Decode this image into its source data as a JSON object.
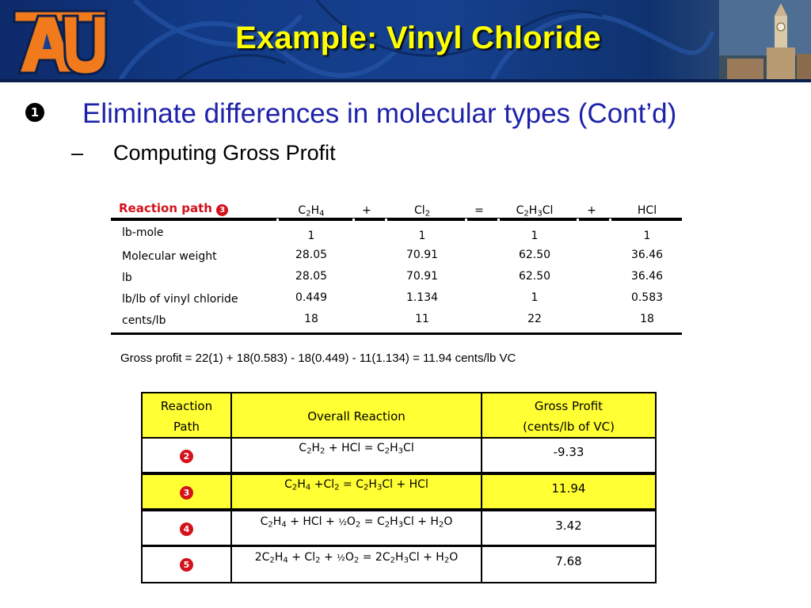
{
  "header": {
    "title": "Example: Vinyl Chloride"
  },
  "bullets": {
    "level1_marker": "1",
    "level1_text": "Eliminate differences in molecular types (Cont’d)",
    "level2_dash": "–",
    "level2_text": "Computing Gross Profit"
  },
  "reaction_table": {
    "title": "Reaction path",
    "path_marker": "3",
    "header": [
      {
        "main": "C",
        "sub": "2",
        "main2": "H",
        "sub2": "4",
        "tail": ""
      },
      {
        "main": "+"
      },
      {
        "main": "Cl",
        "sub": "2"
      },
      {
        "main": "="
      },
      {
        "main": "C",
        "sub": "2",
        "main2": "H",
        "sub2": "3",
        "tail": "Cl"
      },
      {
        "main": "+"
      },
      {
        "main": "HCl"
      }
    ],
    "rows": [
      {
        "label": "lb-mole",
        "values": [
          "1",
          "1",
          "1",
          "1"
        ]
      },
      {
        "label": "Molecular weight",
        "values": [
          "28.05",
          "70.91",
          "62.50",
          "36.46"
        ]
      },
      {
        "label": "lb",
        "values": [
          "28.05",
          "70.91",
          "62.50",
          "36.46"
        ]
      },
      {
        "label": "lb/lb of vinyl chloride",
        "values": [
          "0.449",
          "1.134",
          "1",
          "0.583"
        ]
      },
      {
        "label": "cents/lb",
        "values": [
          "18",
          "11",
          "22",
          "18"
        ]
      }
    ]
  },
  "gross_profit_equation": "Gross profit = 22(1) + 18(0.583) - 18(0.449) - 11(1.134) = 11.94 cents/lb VC",
  "summary_table": {
    "headers": {
      "path_line1": "Reaction",
      "path_line2": "Path",
      "reaction": "Overall Reaction",
      "profit_line1": "Gross Profit",
      "profit_line2": "(cents/lb of VC)"
    },
    "rows": [
      {
        "path": "2",
        "reaction": "C2H2 + HCl = C2H3Cl",
        "profit": "-9.33",
        "highlight": false
      },
      {
        "path": "3",
        "reaction": "C2H4 +Cl2 = C2H3Cl + HCl",
        "profit": "11.94",
        "highlight": true
      },
      {
        "path": "4",
        "reaction": "C2H4 + HCl + ½O2 = C2H3Cl + H2O",
        "profit": "3.42",
        "highlight": false
      },
      {
        "path": "5",
        "reaction": "2C2H4 + Cl2 + ½O2 = 2C2H3Cl + H2O",
        "profit": "7.68",
        "highlight": false
      }
    ]
  },
  "colors": {
    "banner_blue": "#16408e",
    "title_yellow": "#ffff00",
    "bullet_blue": "#1e22aa",
    "accent_red": "#d4121c",
    "highlight_yellow": "#ffff33",
    "logo_orange": "#e86a10"
  }
}
